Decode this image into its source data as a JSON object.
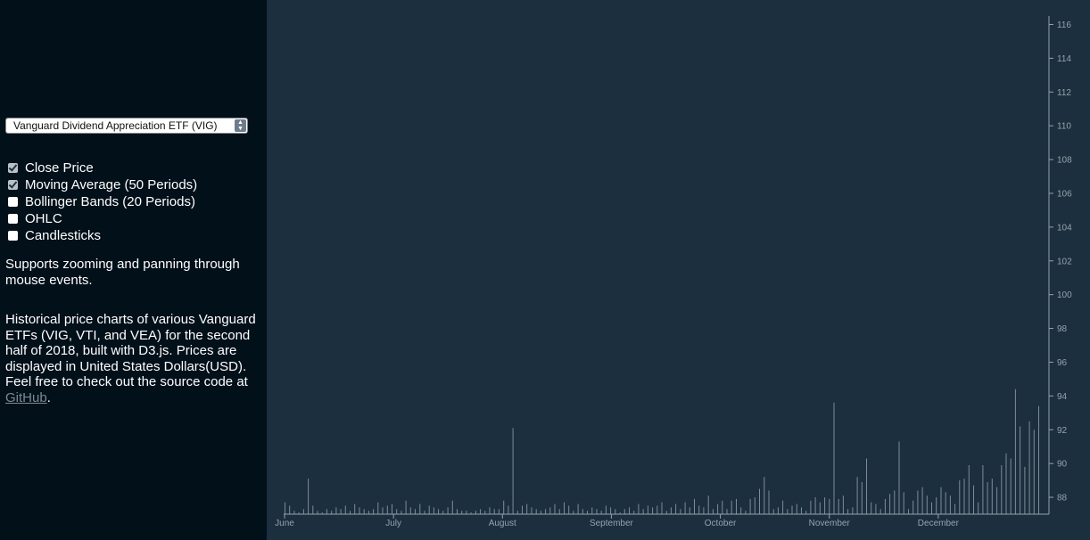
{
  "sidebar": {
    "select": {
      "selected": "Vanguard Dividend Appreciation ETF (VIG)"
    },
    "options": [
      {
        "label": "Close Price",
        "checked": true
      },
      {
        "label": "Moving Average (50 Periods)",
        "checked": true
      },
      {
        "label": "Bollinger Bands (20 Periods)",
        "checked": false
      },
      {
        "label": "OHLC",
        "checked": false
      },
      {
        "label": "Candlesticks",
        "checked": false
      }
    ],
    "zoom_note": "Supports zooming and panning through mouse events.",
    "about_text": "Historical price charts of various Vanguard ETFs (VIG, VTI, and VEA) for the second half of 2018, built with D3.js. Prices are displayed in United States Dollars(USD). Feel free to check out the source code at ",
    "github_label": "GitHub",
    "about_end": "."
  },
  "colors": {
    "sidebar_bg": "#02101a",
    "chart_bg": "#1c2f3e",
    "axis": "#95a3ad",
    "volume_bar": "#7d8c97"
  },
  "chart_data": {
    "type": "bar",
    "x_tick_labels": [
      "June",
      "July",
      "August",
      "September",
      "October",
      "November",
      "December"
    ],
    "y_tick_labels": [
      "88",
      "90",
      "92",
      "94",
      "96",
      "98",
      "100",
      "102",
      "104",
      "106",
      "108",
      "110",
      "112",
      "114",
      "116"
    ],
    "ylim": [
      87,
      116.5
    ],
    "grid": false,
    "bar_tops": [
      87.7,
      87.5,
      87.2,
      87.1,
      87.3,
      89.1,
      87.5,
      87.2,
      87.1,
      87.3,
      87.2,
      87.4,
      87.3,
      87.5,
      87.2,
      87.6,
      87.4,
      87.3,
      87.2,
      87.3,
      87.7,
      87.4,
      87.5,
      87.6,
      87.3,
      87.2,
      87.8,
      87.4,
      87.3,
      87.6,
      87.2,
      87.5,
      87.4,
      87.3,
      87.2,
      87.4,
      87.8,
      87.3,
      87.2,
      87.2,
      87.1,
      87.2,
      87.3,
      87.2,
      87.4,
      87.3,
      87.3,
      87.8,
      87.5,
      92.1,
      87.2,
      87.5,
      87.6,
      87.4,
      87.3,
      87.2,
      87.3,
      87.4,
      87.6,
      87.3,
      87.7,
      87.5,
      87.2,
      87.6,
      87.3,
      87.2,
      87.4,
      87.3,
      87.2,
      87.5,
      87.4,
      87.3,
      87.1,
      87.3,
      87.4,
      87.2,
      87.6,
      87.3,
      87.5,
      87.4,
      87.5,
      87.7,
      87.2,
      87.4,
      87.6,
      87.3,
      87.7,
      87.4,
      87.9,
      87.5,
      87.4,
      88.1,
      87.3,
      87.6,
      87.8,
      87.3,
      87.8,
      87.9,
      87.4,
      87.2,
      87.9,
      88.0,
      88.5,
      89.2,
      88.4,
      87.3,
      87.4,
      87.8,
      87.3,
      87.5,
      87.6,
      87.4,
      87.2,
      87.8,
      88.0,
      87.7,
      88.0,
      87.9,
      93.6,
      87.9,
      88.1,
      87.3,
      87.4,
      89.2,
      88.9,
      90.3,
      87.7,
      87.6,
      87.3,
      87.9,
      88.2,
      88.4,
      91.3,
      88.3,
      87.3,
      87.8,
      88.4,
      88.6,
      88.1,
      87.7,
      88.0,
      88.6,
      88.3,
      88.1,
      87.6,
      89.0,
      89.1,
      89.9,
      88.7,
      87.7,
      89.9,
      88.9,
      89.1,
      88.6,
      89.9,
      90.6,
      90.3,
      94.4,
      92.2,
      89.8,
      92.5,
      92.0,
      93.4
    ]
  }
}
